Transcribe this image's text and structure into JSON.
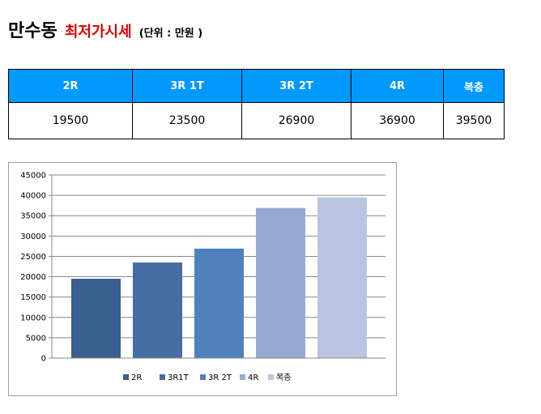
{
  "header": {
    "title": "만수동",
    "subtitle": "최저가시세",
    "unit": "(단위 : 만원 )"
  },
  "table": {
    "headers": [
      "2R",
      "3R 1T",
      "3R 2T",
      "4R",
      "복층"
    ],
    "values": [
      "19500",
      "23500",
      "26900",
      "36900",
      "39500"
    ]
  },
  "chart_data": {
    "type": "bar",
    "categories": [
      ""
    ],
    "series": [
      {
        "name": "2R",
        "values": [
          19500
        ],
        "color": "#3a5e8e"
      },
      {
        "name": "3R1T",
        "values": [
          23500
        ],
        "color": "#456fa3"
      },
      {
        "name": "3R 2T",
        "values": [
          26900
        ],
        "color": "#4f81bd"
      },
      {
        "name": "4R",
        "values": [
          36900
        ],
        "color": "#95a9d1"
      },
      {
        "name": "복층",
        "values": [
          39500
        ],
        "color": "#b9c5e2"
      }
    ],
    "ylim": [
      0,
      45000
    ],
    "yticks": [
      0,
      5000,
      10000,
      15000,
      20000,
      25000,
      30000,
      35000,
      40000,
      45000
    ],
    "grid": true,
    "legend_position": "bottom"
  },
  "colors": {
    "header_bg": "#0099ff",
    "header_text": "#ffffff",
    "subtitle": "#e00000",
    "grid": "#888888"
  }
}
